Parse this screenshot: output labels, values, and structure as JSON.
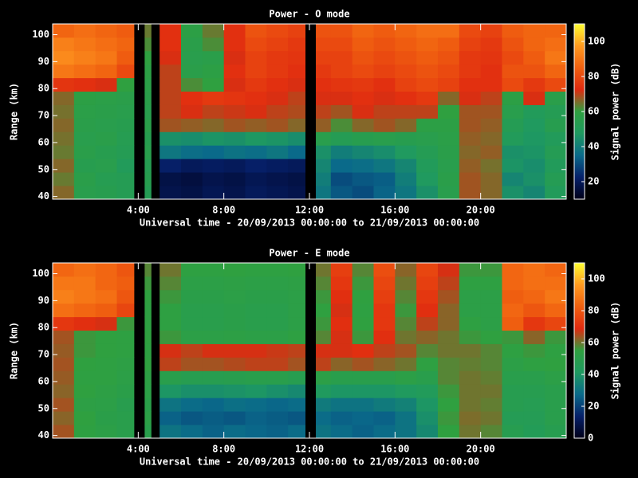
{
  "chart_data": [
    {
      "type": "heatmap",
      "title": "Power - O mode",
      "x_label": "Universal time - 20/09/2013 00:00:00 to 21/09/2013 00:00:00",
      "y_label": "Range (km)",
      "colorbar_label": "Signal power (dB)",
      "x_bins": [
        0,
        1,
        2,
        3,
        3.8,
        4.3,
        4.6,
        5,
        6,
        7,
        8,
        9,
        10,
        11,
        11.8,
        12.3,
        13,
        14,
        15,
        16,
        17,
        18,
        19,
        20,
        21,
        22,
        23,
        24
      ],
      "y_bins": [
        39,
        44,
        49,
        54,
        59,
        64,
        69,
        74,
        79,
        84,
        89,
        94,
        99,
        104
      ],
      "z": [
        [
          66,
          55,
          54,
          52,
          null,
          52,
          null,
          18,
          17,
          19,
          18,
          20,
          19,
          18,
          null,
          38,
          32,
          30,
          34,
          38,
          45,
          55,
          68,
          66,
          45,
          42,
          50
        ],
        [
          64,
          56,
          53,
          52,
          null,
          54,
          null,
          17,
          16,
          18,
          17,
          19,
          18,
          17,
          null,
          40,
          30,
          32,
          33,
          40,
          48,
          56,
          68,
          66,
          42,
          45,
          52
        ],
        [
          66,
          54,
          55,
          50,
          null,
          53,
          null,
          22,
          20,
          21,
          20,
          22,
          21,
          20,
          null,
          42,
          35,
          36,
          38,
          42,
          50,
          55,
          67,
          65,
          46,
          44,
          50
        ],
        [
          64,
          56,
          54,
          52,
          null,
          55,
          null,
          38,
          36,
          35,
          37,
          36,
          38,
          35,
          null,
          45,
          40,
          42,
          44,
          48,
          52,
          56,
          66,
          67,
          45,
          46,
          52
        ],
        [
          65,
          55,
          56,
          53,
          null,
          54,
          null,
          45,
          44,
          46,
          45,
          47,
          46,
          44,
          null,
          55,
          52,
          54,
          55,
          54,
          55,
          57,
          67,
          66,
          50,
          47,
          50
        ],
        [
          66,
          56,
          55,
          54,
          null,
          56,
          null,
          68,
          67,
          66,
          68,
          67,
          68,
          66,
          null,
          67,
          62,
          66,
          68,
          66,
          58,
          58,
          68,
          67,
          52,
          48,
          54
        ],
        [
          65,
          57,
          56,
          55,
          null,
          55,
          null,
          70,
          72,
          70,
          71,
          72,
          70,
          69,
          null,
          70,
          68,
          72,
          70,
          70,
          70,
          60,
          68,
          68,
          55,
          50,
          52
        ],
        [
          66,
          58,
          57,
          56,
          null,
          56,
          null,
          70,
          74,
          76,
          75,
          74,
          72,
          70,
          null,
          72,
          72,
          74,
          72,
          74,
          76,
          66,
          72,
          70,
          58,
          72,
          56
        ],
        [
          75,
          74,
          72,
          60,
          null,
          57,
          null,
          70,
          62,
          60,
          72,
          76,
          74,
          72,
          null,
          74,
          75,
          76,
          74,
          78,
          80,
          78,
          74,
          74,
          80,
          76,
          80
        ],
        [
          90,
          88,
          86,
          80,
          null,
          58,
          null,
          70,
          56,
          58,
          74,
          78,
          76,
          74,
          null,
          76,
          78,
          80,
          78,
          80,
          82,
          80,
          76,
          74,
          82,
          82,
          86
        ],
        [
          94,
          92,
          90,
          84,
          null,
          60,
          null,
          72,
          55,
          56,
          72,
          78,
          76,
          75,
          null,
          78,
          78,
          82,
          80,
          82,
          84,
          82,
          76,
          75,
          80,
          84,
          90
        ],
        [
          92,
          90,
          88,
          86,
          null,
          62,
          null,
          74,
          56,
          62,
          74,
          80,
          78,
          76,
          null,
          80,
          80,
          84,
          82,
          84,
          86,
          84,
          78,
          76,
          82,
          86,
          88
        ],
        [
          86,
          88,
          86,
          84,
          null,
          64,
          null,
          74,
          58,
          64,
          74,
          82,
          80,
          78,
          null,
          82,
          82,
          86,
          84,
          86,
          88,
          88,
          80,
          78,
          84,
          86,
          86
        ]
      ],
      "xlim": [
        0,
        24
      ],
      "ylim": [
        39,
        104
      ],
      "xticks": [
        {
          "value": 4,
          "label": "4:00"
        },
        {
          "value": 8,
          "label": "8:00"
        },
        {
          "value": 12,
          "label": "12:00"
        },
        {
          "value": 16,
          "label": "16:00"
        },
        {
          "value": 20,
          "label": "20:00"
        }
      ],
      "yticks": [
        40,
        50,
        60,
        70,
        80,
        90,
        100
      ],
      "zlim": [
        10,
        110
      ],
      "zticks": [
        20,
        40,
        60,
        80,
        100
      ],
      "colors": [
        "#000018",
        "#06206a",
        "#0a6a8a",
        "#1f9a60",
        "#2fa040",
        "#e02a10",
        "#f06010",
        "#ff9a20",
        "#ffff30"
      ]
    },
    {
      "type": "heatmap",
      "title": "Power - E mode",
      "x_label": "Universal time - 20/09/2013 00:00:00 to 21/09/2013 00:00:00",
      "y_label": "Range (km)",
      "colorbar_label": "Signal power (dB)",
      "x_bins": [
        0,
        1,
        2,
        3,
        3.8,
        4.3,
        4.6,
        5,
        6,
        7,
        8,
        9,
        10,
        11,
        11.8,
        12.3,
        13,
        14,
        15,
        16,
        17,
        18,
        19,
        20,
        21,
        22,
        23,
        24
      ],
      "y_bins": [
        39,
        44,
        49,
        54,
        59,
        64,
        69,
        74,
        79,
        84,
        89,
        94,
        99,
        104
      ],
      "z": [
        [
          64,
          54,
          52,
          50,
          null,
          50,
          null,
          30,
          28,
          26,
          28,
          27,
          26,
          28,
          null,
          30,
          28,
          26,
          28,
          30,
          36,
          55,
          60,
          58,
          48,
          45,
          48
        ],
        [
          62,
          55,
          51,
          50,
          null,
          52,
          null,
          26,
          24,
          25,
          24,
          26,
          25,
          24,
          null,
          28,
          26,
          27,
          26,
          30,
          38,
          56,
          61,
          60,
          46,
          46,
          50
        ],
        [
          64,
          53,
          52,
          49,
          null,
          51,
          null,
          30,
          28,
          27,
          29,
          28,
          27,
          28,
          null,
          32,
          30,
          30,
          32,
          34,
          40,
          55,
          60,
          59,
          48,
          47,
          50
        ],
        [
          62,
          55,
          53,
          51,
          null,
          52,
          null,
          40,
          38,
          38,
          39,
          40,
          38,
          36,
          null,
          42,
          40,
          40,
          40,
          42,
          44,
          56,
          60,
          60,
          48,
          48,
          50
        ],
        [
          63,
          54,
          54,
          52,
          null,
          53,
          null,
          50,
          48,
          48,
          49,
          50,
          50,
          48,
          null,
          52,
          50,
          50,
          50,
          52,
          50,
          58,
          60,
          59,
          50,
          50,
          52
        ],
        [
          64,
          55,
          54,
          53,
          null,
          55,
          null,
          66,
          64,
          64,
          65,
          66,
          66,
          64,
          null,
          66,
          62,
          64,
          62,
          60,
          54,
          58,
          59,
          58,
          52,
          54,
          55
        ],
        [
          63,
          56,
          55,
          54,
          null,
          54,
          null,
          68,
          66,
          68,
          68,
          68,
          67,
          66,
          null,
          68,
          68,
          70,
          66,
          64,
          58,
          60,
          60,
          58,
          54,
          56,
          54
        ],
        [
          64,
          56,
          55,
          54,
          null,
          55,
          null,
          56,
          52,
          52,
          53,
          52,
          52,
          54,
          null,
          58,
          68,
          56,
          70,
          60,
          62,
          60,
          56,
          55,
          56,
          62,
          56
        ],
        [
          72,
          70,
          68,
          56,
          null,
          54,
          null,
          54,
          50,
          50,
          51,
          50,
          50,
          52,
          null,
          56,
          70,
          55,
          72,
          58,
          66,
          62,
          54,
          52,
          82,
          72,
          76
        ],
        [
          86,
          84,
          82,
          76,
          null,
          54,
          null,
          54,
          50,
          50,
          51,
          50,
          50,
          52,
          null,
          55,
          68,
          54,
          72,
          56,
          70,
          62,
          52,
          52,
          84,
          80,
          84
        ],
        [
          90,
          88,
          86,
          80,
          null,
          55,
          null,
          56,
          51,
          51,
          52,
          51,
          51,
          52,
          null,
          56,
          70,
          55,
          74,
          58,
          72,
          64,
          52,
          52,
          82,
          84,
          88
        ],
        [
          88,
          88,
          84,
          82,
          null,
          56,
          null,
          58,
          52,
          52,
          53,
          52,
          52,
          53,
          null,
          58,
          72,
          56,
          76,
          60,
          74,
          66,
          54,
          54,
          84,
          86,
          86
        ],
        [
          84,
          86,
          84,
          80,
          null,
          58,
          null,
          60,
          54,
          54,
          55,
          54,
          54,
          55,
          null,
          60,
          74,
          58,
          78,
          62,
          76,
          68,
          56,
          56,
          84,
          86,
          84
        ]
      ],
      "xlim": [
        0,
        24
      ],
      "ylim": [
        39,
        104
      ],
      "xticks": [
        {
          "value": 4,
          "label": "4:00"
        },
        {
          "value": 8,
          "label": "8:00"
        },
        {
          "value": 12,
          "label": "12:00"
        },
        {
          "value": 16,
          "label": "16:00"
        },
        {
          "value": 20,
          "label": "20:00"
        }
      ],
      "yticks": [
        40,
        50,
        60,
        70,
        80,
        90,
        100
      ],
      "zlim": [
        0,
        110
      ],
      "zticks": [
        0,
        20,
        40,
        60,
        80,
        100
      ],
      "colors": [
        "#000018",
        "#06206a",
        "#0a6a8a",
        "#1f9a60",
        "#2fa040",
        "#e02a10",
        "#f06010",
        "#ff9a20",
        "#ffff30"
      ]
    }
  ]
}
